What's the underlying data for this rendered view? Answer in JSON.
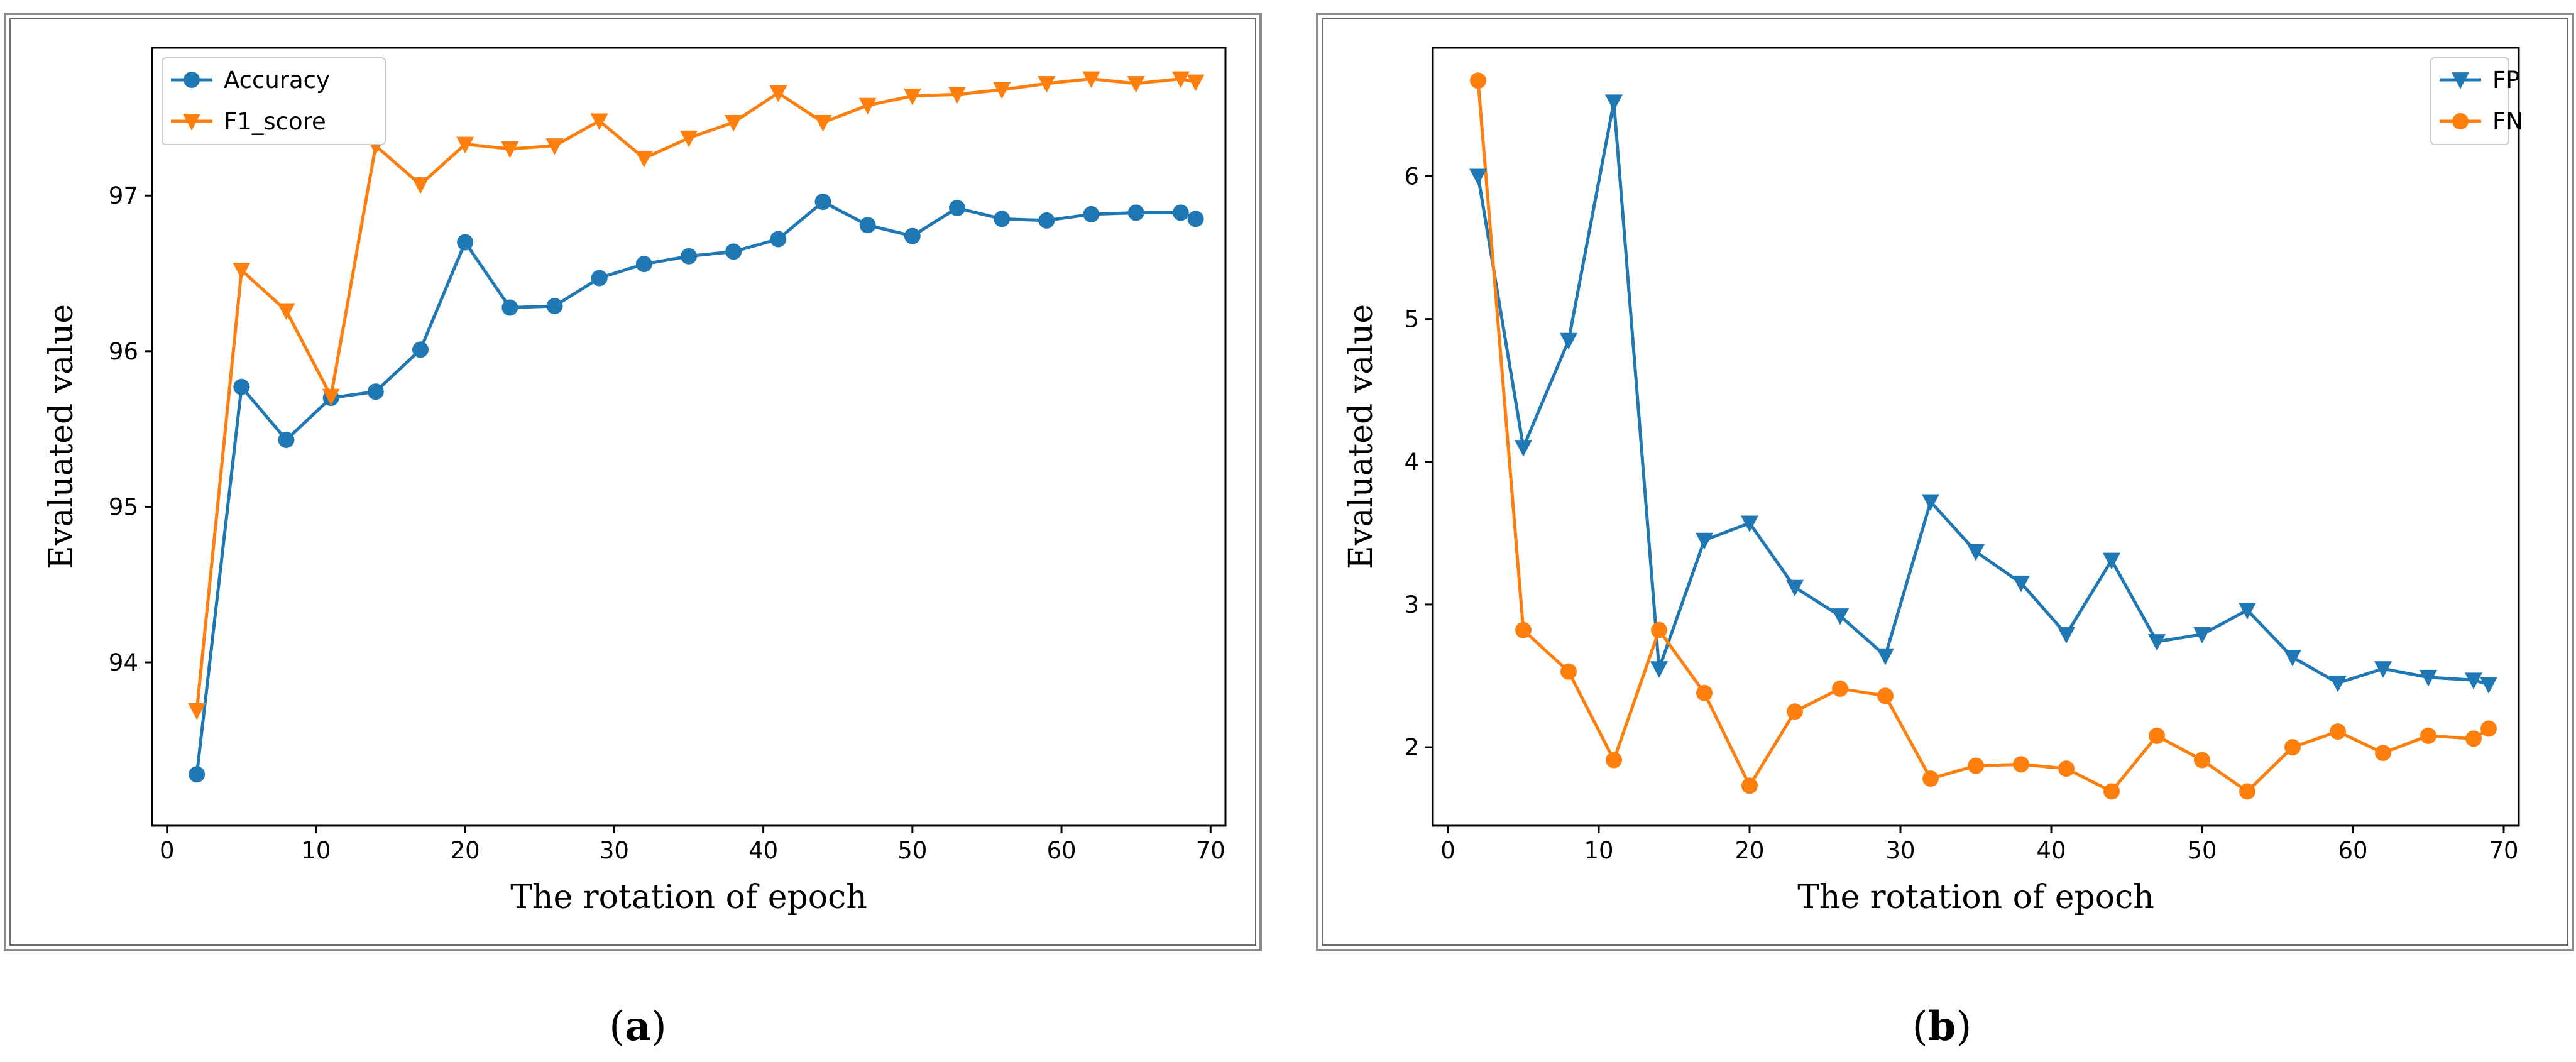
{
  "chart_data": [
    {
      "type": "line",
      "panel": "a",
      "caption": {
        "open": "(",
        "letter": "a",
        "close": ")"
      },
      "xlabel": "The rotation of epoch",
      "ylabel": "Evaluated value",
      "xlim": [
        -1,
        71
      ],
      "ylim": [
        92.95,
        97.95
      ],
      "xticks": [
        0,
        10,
        20,
        30,
        40,
        50,
        60,
        70
      ],
      "yticks": [
        94,
        95,
        96,
        97
      ],
      "legend_position": "top-left",
      "x": [
        2,
        5,
        8,
        11,
        14,
        17,
        20,
        23,
        26,
        29,
        32,
        35,
        38,
        41,
        44,
        47,
        50,
        53,
        56,
        59,
        62,
        65,
        68,
        69
      ],
      "series": [
        {
          "name": "Accuracy",
          "color": "#1f77b4",
          "marker": "circle",
          "values": [
            93.28,
            95.77,
            95.43,
            95.7,
            95.74,
            96.01,
            96.7,
            96.28,
            96.29,
            96.47,
            96.56,
            96.61,
            96.64,
            96.72,
            96.96,
            96.81,
            96.74,
            96.92,
            96.85,
            96.84,
            96.88,
            96.89,
            96.89,
            96.85
          ]
        },
        {
          "name": "F1_score",
          "color": "#ff7f0e",
          "marker": "triangle-down",
          "values": [
            93.69,
            96.52,
            96.26,
            95.71,
            97.32,
            97.07,
            97.33,
            97.3,
            97.32,
            97.48,
            97.24,
            97.37,
            97.47,
            97.66,
            97.47,
            97.58,
            97.64,
            97.65,
            97.68,
            97.72,
            97.75,
            97.72,
            97.75,
            97.73
          ]
        }
      ]
    },
    {
      "type": "line",
      "panel": "b",
      "caption": {
        "open": "(",
        "letter": "b",
        "close": ")"
      },
      "xlabel": "The rotation of epoch",
      "ylabel": "Evaluated value",
      "xlim": [
        -1,
        71
      ],
      "ylim": [
        1.45,
        6.9
      ],
      "xticks": [
        0,
        10,
        20,
        30,
        40,
        50,
        60,
        70
      ],
      "yticks": [
        2,
        3,
        4,
        5,
        6
      ],
      "legend_position": "top-right",
      "x": [
        2,
        5,
        8,
        11,
        14,
        17,
        20,
        23,
        26,
        29,
        32,
        35,
        38,
        41,
        44,
        47,
        50,
        53,
        56,
        59,
        62,
        65,
        68,
        69
      ],
      "series": [
        {
          "name": "FP",
          "color": "#1f77b4",
          "marker": "triangle-down",
          "values": [
            6.0,
            4.1,
            4.85,
            6.52,
            2.55,
            3.45,
            3.57,
            3.12,
            2.92,
            2.64,
            3.72,
            3.37,
            3.15,
            2.79,
            3.31,
            2.74,
            2.79,
            2.96,
            2.63,
            2.45,
            2.55,
            2.49,
            2.47,
            2.44
          ]
        },
        {
          "name": "FN",
          "color": "#ff7f0e",
          "marker": "circle",
          "values": [
            6.67,
            2.82,
            2.53,
            1.91,
            2.82,
            2.38,
            1.73,
            2.25,
            2.41,
            2.36,
            1.78,
            1.87,
            1.88,
            1.85,
            1.69,
            2.08,
            1.91,
            1.69,
            2.0,
            2.11,
            1.96,
            2.08,
            2.06,
            2.13
          ]
        }
      ]
    }
  ]
}
